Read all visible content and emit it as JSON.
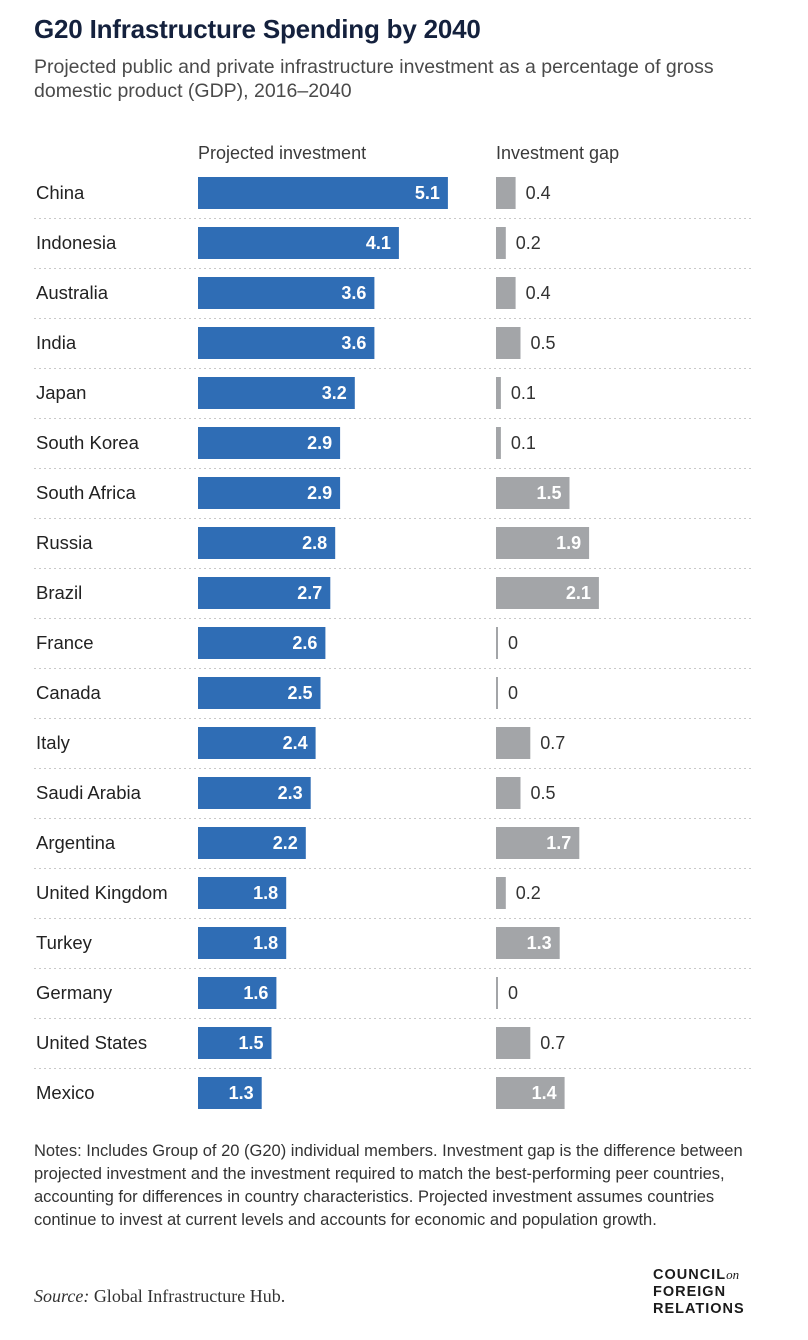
{
  "title": "G20 Infrastructure Spending by 2040",
  "subtitle": "Projected public and private infrastructure investment as a percentage of gross domestic product (GDP), 2016–2040",
  "notes": "Notes: Includes Group of 20 (G20) individual members. Investment gap is the difference between projected investment and the investment required to match the best-performing peer countries, accounting for differences in country characteristics. Projected investment assumes countries continue to invest at current levels and accounts for economic and population growth.",
  "source": {
    "label": "Source:",
    "text": "Global Infrastructure Hub."
  },
  "logo": {
    "line1": "COUNCIL",
    "on": "on",
    "line2": "FOREIGN",
    "line3": "RELATIONS"
  },
  "colors": {
    "investment": "#2f6db5",
    "gap": "#a3a5a8",
    "separator": "#c9c9c9",
    "title": "#14213d"
  },
  "chart_data": {
    "type": "bar",
    "orientation": "horizontal",
    "categories": [
      "China",
      "Indonesia",
      "Australia",
      "India",
      "Japan",
      "South Korea",
      "South Africa",
      "Russia",
      "Brazil",
      "France",
      "Canada",
      "Italy",
      "Saudi Arabia",
      "Argentina",
      "United Kingdom",
      "Turkey",
      "Germany",
      "United States",
      "Mexico"
    ],
    "series": [
      {
        "name": "Projected investment",
        "values": [
          5.1,
          4.1,
          3.6,
          3.6,
          3.2,
          2.9,
          2.9,
          2.8,
          2.7,
          2.6,
          2.5,
          2.4,
          2.3,
          2.2,
          1.8,
          1.8,
          1.6,
          1.5,
          1.3
        ],
        "labels": [
          "5.1",
          "4.1",
          "3.6",
          "3.6",
          "3.2",
          "2.9",
          "2.9",
          "2.8",
          "2.7",
          "2.6",
          "2.5",
          "2.4",
          "2.3",
          "2.2",
          "1.8",
          "1.8",
          "1.6",
          "1.5",
          "1.3"
        ]
      },
      {
        "name": "Investment gap",
        "values": [
          0.4,
          0.2,
          0.4,
          0.5,
          0.1,
          0.1,
          1.5,
          1.9,
          2.1,
          0,
          0,
          0.7,
          0.5,
          1.7,
          0.2,
          1.3,
          0,
          0.7,
          1.4
        ],
        "labels": [
          "0.4",
          "0.2",
          "0.4",
          "0.5",
          "0.1",
          "0.1",
          "1.5",
          "1.9",
          "2.1",
          "0",
          "0",
          "0.7",
          "0.5",
          "1.7",
          "0.2",
          "1.3",
          "0",
          "0.7",
          "1.4"
        ]
      }
    ],
    "xlabel": "",
    "ylabel": "",
    "grid": false,
    "legend": "none"
  }
}
